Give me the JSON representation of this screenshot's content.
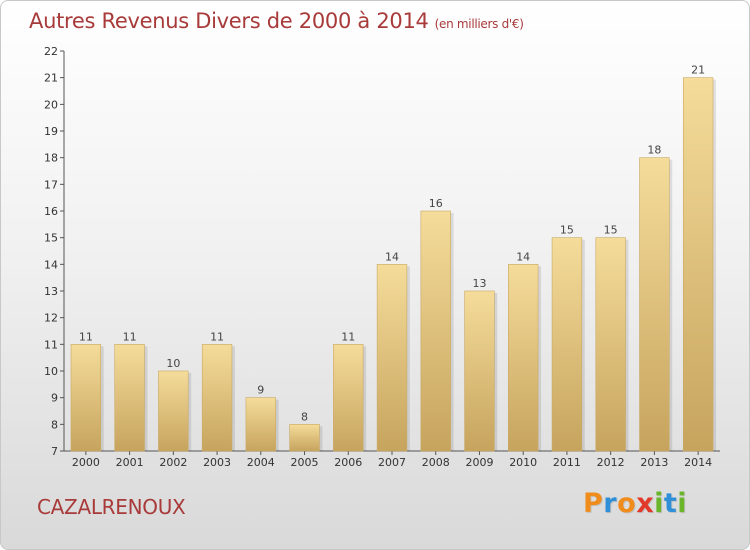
{
  "title": "Autres Revenus Divers de 2000 à 2014",
  "title_unit": "(en milliers d'€)",
  "place": "CAZALRENOUX",
  "brand": {
    "letters": [
      "P",
      "r",
      "o",
      "x",
      "i",
      "t",
      "i"
    ],
    "colors": [
      "#f08c1c",
      "#2f8fd8",
      "#f08c1c",
      "#e23a2a",
      "#6bb52b",
      "#2f8fd8",
      "#6bb52b"
    ]
  },
  "colors": {
    "title": "#a83a3a",
    "bar_light": "#f5dc9a",
    "bar_dark": "#c6a45e"
  },
  "chart_data": {
    "type": "bar",
    "title": "Autres Revenus Divers de 2000 à 2014",
    "subtitle": "(en milliers d'€)",
    "xlabel": "",
    "ylabel": "",
    "categories": [
      "2000",
      "2001",
      "2002",
      "2003",
      "2004",
      "2005",
      "2006",
      "2007",
      "2008",
      "2009",
      "2010",
      "2011",
      "2012",
      "2013",
      "2014"
    ],
    "values": [
      11,
      11,
      10,
      11,
      9,
      8,
      11,
      14,
      16,
      13,
      14,
      15,
      15,
      18,
      21
    ],
    "ylim": [
      7,
      22
    ],
    "yticks": [
      7,
      8,
      9,
      10,
      11,
      12,
      13,
      14,
      15,
      16,
      17,
      18,
      19,
      20,
      21,
      22
    ],
    "grid": false,
    "data_labels": true
  }
}
